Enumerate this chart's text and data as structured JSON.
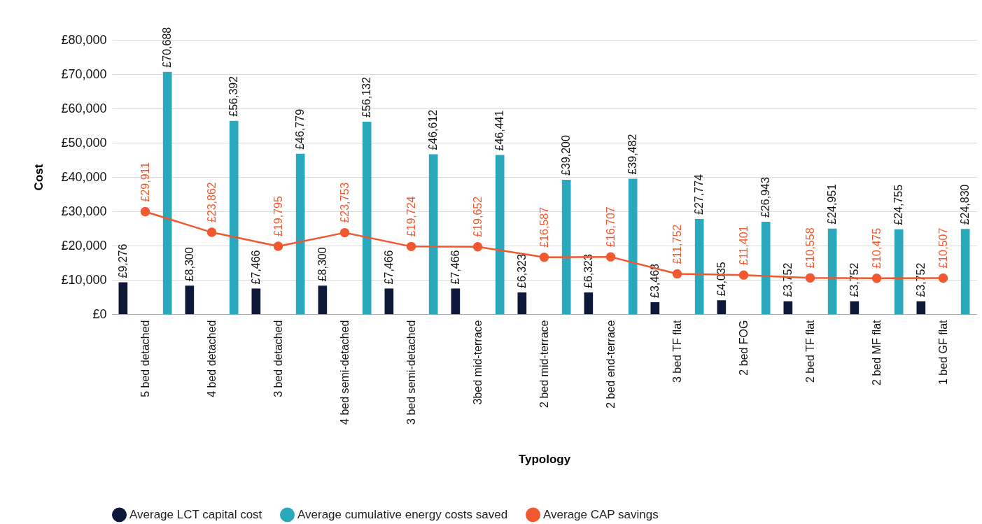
{
  "chart_data": {
    "type": "bar",
    "xlabel": "Typology",
    "ylabel": "Cost",
    "categories": [
      "5 bed detached",
      "4 bed detached",
      "3 bed detached",
      "4 bed semi-detached",
      "3 bed semi-detached",
      "3bed mid-terrace",
      "2 bed mid-terrace",
      "2 bed end-terrace",
      "3 bed TF flat",
      "2 bed FOG",
      "2 bed TF flat",
      "2 bed MF flat",
      "1 bed GF flat"
    ],
    "series": [
      {
        "name": "Average LCT capital cost",
        "color": "#0e1838",
        "values": [
          9276,
          8300,
          7466,
          8300,
          7466,
          7466,
          6323,
          6323,
          3468,
          4035,
          3752,
          3752,
          3752
        ],
        "value_labels": [
          "£9,276",
          "£8,300",
          "£7,466",
          "£8,300",
          "£7,466",
          "£7,466",
          "£6,323",
          "£6,323",
          "£3,468",
          "£4,035",
          "£3,752",
          "£3,752",
          "£3,752"
        ]
      },
      {
        "name": "Average cumulative energy costs saved",
        "color": "#2aa8bc",
        "values": [
          70688,
          56392,
          46779,
          56132,
          46612,
          46441,
          39200,
          39482,
          27774,
          26943,
          24951,
          24755,
          24830
        ],
        "value_labels": [
          "£70,688",
          "£56,392",
          "£46,779",
          "£56,132",
          "£46,612",
          "£46,441",
          "£39,200",
          "£39,482",
          "£27,774",
          "£26,943",
          "£24,951",
          "£24,755",
          "£24,830"
        ]
      },
      {
        "name": "Average CAP savings",
        "color": "#f1582f",
        "type": "line",
        "marker": "circle",
        "values": [
          29911,
          23862,
          19795,
          23753,
          19724,
          19652,
          16587,
          16707,
          11752,
          11401,
          10558,
          10475,
          10507
        ],
        "value_labels": [
          "£29,911",
          "£23,862",
          "£19,795",
          "£23,753",
          "£19,724",
          "£19,652",
          "£16,587",
          "£16,707",
          "£11,752",
          "£11,401",
          "£10,558",
          "£10,475",
          "£10,507"
        ]
      }
    ],
    "ylim": [
      0,
      80000
    ],
    "yticks": [
      {
        "value": 0,
        "label": "£0"
      },
      {
        "value": 10000,
        "label": "£10,000"
      },
      {
        "value": 20000,
        "label": "£20,000"
      },
      {
        "value": 30000,
        "label": "£30,000"
      },
      {
        "value": 40000,
        "label": "£40,000"
      },
      {
        "value": 50000,
        "label": "£50,000"
      },
      {
        "value": 60000,
        "label": "£60,000"
      },
      {
        "value": 70000,
        "label": "£70,000"
      },
      {
        "value": 80000,
        "label": "£80,000"
      }
    ],
    "grid": "y",
    "legend": "bottom"
  }
}
